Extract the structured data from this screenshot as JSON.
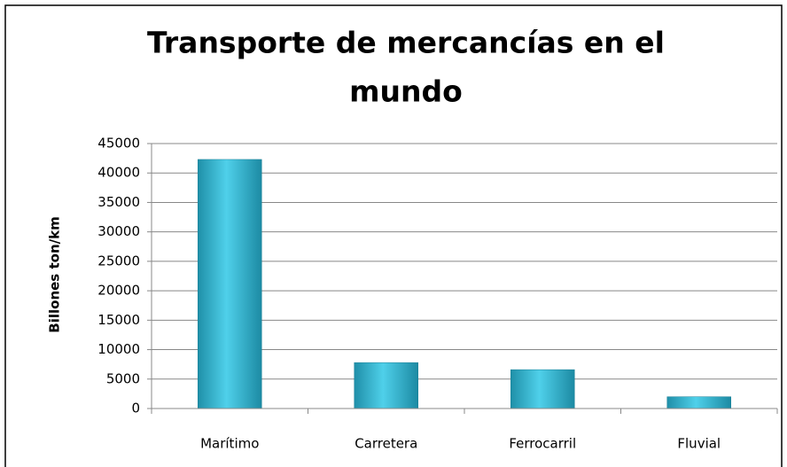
{
  "chart_data": {
    "type": "bar",
    "title": [
      "Transporte de mercancías en el",
      "mundo"
    ],
    "y_label": "Billones ton/km",
    "categories": [
      "Marítimo",
      "Carretera",
      "Ferrocarril",
      "Fluvial"
    ],
    "values": [
      42300,
      7800,
      6600,
      2000
    ],
    "color": "#2ab3d0",
    "ylim": [
      0,
      45000
    ],
    "yticks": [
      0,
      5000,
      10000,
      15000,
      20000,
      25000,
      30000,
      35000,
      40000,
      45000
    ],
    "grid": true
  }
}
